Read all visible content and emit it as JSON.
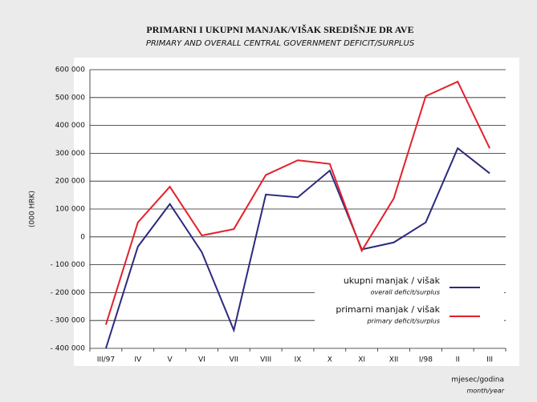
{
  "chart_data": {
    "type": "line",
    "title": "PRIMARNI I UKUPNI MANJAK/VIŠAK SREDIŠNJE DR AVE",
    "subtitle": "PRIMARY AND OVERALL CENTRAL GOVERNMENT DEFICIT/SURPLUS",
    "y_label": "(000 HRK)",
    "x_label": "mjesec/godina",
    "x_label_en": "month/year",
    "categories": [
      "III/97",
      "IV",
      "V",
      "VI",
      "VII",
      "VIII",
      "IX",
      "X",
      "XI",
      "XII",
      "I/98",
      "II",
      "III"
    ],
    "series": [
      {
        "name": "ukupni manjak / višak",
        "name_en": "overall deficit/surplus",
        "color": "#2b2a7e",
        "values": [
          -400000,
          -35000,
          118000,
          -55000,
          -335000,
          152000,
          142000,
          238000,
          -45000,
          -20000,
          52000,
          318000,
          228000
        ]
      },
      {
        "name": "primarni manjak / višak",
        "name_en": "primary deficit/surplus",
        "color": "#e3212b",
        "values": [
          -315000,
          52000,
          180000,
          5000,
          28000,
          222000,
          275000,
          262000,
          -50000,
          138000,
          505000,
          557000,
          318000
        ]
      }
    ],
    "ylim": [
      -400000,
      600000
    ],
    "yticks": [
      {
        "value": -400000,
        "label": "- 400 000"
      },
      {
        "value": -300000,
        "label": "- 300 000"
      },
      {
        "value": -200000,
        "label": "- 200 000"
      },
      {
        "value": -100000,
        "label": "- 100 000"
      },
      0,
      {
        "value": 100000,
        "label": "100 000"
      },
      {
        "value": 200000,
        "label": "200 000"
      },
      {
        "value": 300000,
        "label": "300 000"
      },
      {
        "value": 400000,
        "label": "400 000"
      },
      {
        "value": 500000,
        "label": "500 000"
      },
      {
        "value": 600000,
        "label": "600 000"
      }
    ],
    "grid": true
  }
}
